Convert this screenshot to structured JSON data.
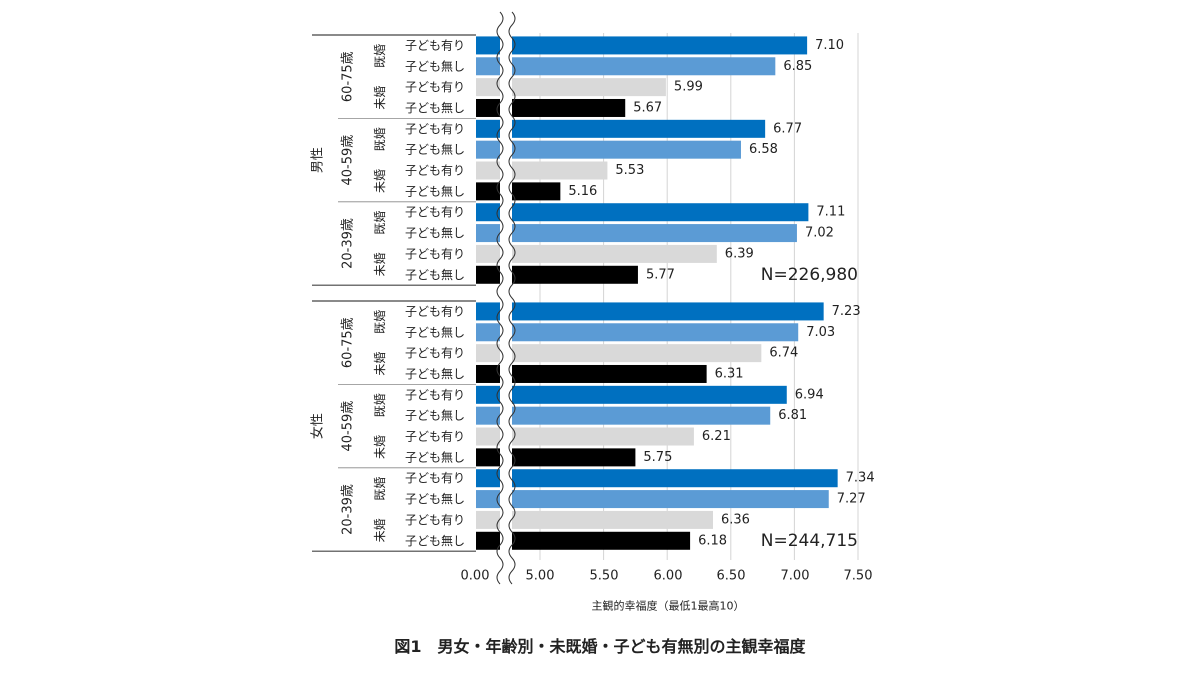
{
  "caption": "図1　男女・年齢別・未既婚・子ども有無別の主観幸福度",
  "chart_data": {
    "type": "bar",
    "orientation": "horizontal",
    "xlabel": "主観的幸福度（最低1最高10）",
    "x_ticks": [
      "0.00",
      "5.00",
      "5.50",
      "6.00",
      "6.50",
      "7.00",
      "7.50"
    ],
    "xlim": [
      4.5,
      7.5
    ],
    "axis_break": true,
    "grid": "vertical",
    "colors": {
      "married_child": "#0070c0",
      "married_nochild": "#5b9bd5",
      "single_child": "#d9d9d9",
      "single_nochild": "#000000"
    },
    "groups": [
      {
        "sex": "男性",
        "n_label": "N=226,980",
        "ages": [
          {
            "age": "60-75歳",
            "status": [
              {
                "label": "既婚",
                "bars": [
                  {
                    "label": "子ども有り",
                    "value": 7.1,
                    "value_label": "7.10",
                    "kind": "married_child"
                  },
                  {
                    "label": "子ども無し",
                    "value": 6.85,
                    "value_label": "6.85",
                    "kind": "married_nochild"
                  }
                ]
              },
              {
                "label": "未婚",
                "bars": [
                  {
                    "label": "子ども有り",
                    "value": 5.99,
                    "value_label": "5.99",
                    "kind": "single_child"
                  },
                  {
                    "label": "子ども無し",
                    "value": 5.67,
                    "value_label": "5.67",
                    "kind": "single_nochild"
                  }
                ]
              }
            ]
          },
          {
            "age": "40-59歳",
            "status": [
              {
                "label": "既婚",
                "bars": [
                  {
                    "label": "子ども有り",
                    "value": 6.77,
                    "value_label": "6.77",
                    "kind": "married_child"
                  },
                  {
                    "label": "子ども無し",
                    "value": 6.58,
                    "value_label": "6.58",
                    "kind": "married_nochild"
                  }
                ]
              },
              {
                "label": "未婚",
                "bars": [
                  {
                    "label": "子ども有り",
                    "value": 5.53,
                    "value_label": "5.53",
                    "kind": "single_child"
                  },
                  {
                    "label": "子ども無し",
                    "value": 5.16,
                    "value_label": "5.16",
                    "kind": "single_nochild"
                  }
                ]
              }
            ]
          },
          {
            "age": "20-39歳",
            "status": [
              {
                "label": "既婚",
                "bars": [
                  {
                    "label": "子ども有り",
                    "value": 7.11,
                    "value_label": "7.11",
                    "kind": "married_child"
                  },
                  {
                    "label": "子ども無し",
                    "value": 7.02,
                    "value_label": "7.02",
                    "kind": "married_nochild"
                  }
                ]
              },
              {
                "label": "未婚",
                "bars": [
                  {
                    "label": "子ども有り",
                    "value": 6.39,
                    "value_label": "6.39",
                    "kind": "single_child"
                  },
                  {
                    "label": "子ども無し",
                    "value": 5.77,
                    "value_label": "5.77",
                    "kind": "single_nochild"
                  }
                ]
              }
            ]
          }
        ]
      },
      {
        "sex": "女性",
        "n_label": "N=244,715",
        "ages": [
          {
            "age": "60-75歳",
            "status": [
              {
                "label": "既婚",
                "bars": [
                  {
                    "label": "子ども有り",
                    "value": 7.23,
                    "value_label": "7.23",
                    "kind": "married_child"
                  },
                  {
                    "label": "子ども無し",
                    "value": 7.03,
                    "value_label": "7.03",
                    "kind": "married_nochild"
                  }
                ]
              },
              {
                "label": "未婚",
                "bars": [
                  {
                    "label": "子ども有り",
                    "value": 6.74,
                    "value_label": "6.74",
                    "kind": "single_child"
                  },
                  {
                    "label": "子ども無し",
                    "value": 6.31,
                    "value_label": "6.31",
                    "kind": "single_nochild"
                  }
                ]
              }
            ]
          },
          {
            "age": "40-59歳",
            "status": [
              {
                "label": "既婚",
                "bars": [
                  {
                    "label": "子ども有り",
                    "value": 6.94,
                    "value_label": "6.94",
                    "kind": "married_child"
                  },
                  {
                    "label": "子ども無し",
                    "value": 6.81,
                    "value_label": "6.81",
                    "kind": "married_nochild"
                  }
                ]
              },
              {
                "label": "未婚",
                "bars": [
                  {
                    "label": "子ども有り",
                    "value": 6.21,
                    "value_label": "6.21",
                    "kind": "single_child"
                  },
                  {
                    "label": "子ども無し",
                    "value": 5.75,
                    "value_label": "5.75",
                    "kind": "single_nochild"
                  }
                ]
              }
            ]
          },
          {
            "age": "20-39歳",
            "status": [
              {
                "label": "既婚",
                "bars": [
                  {
                    "label": "子ども有り",
                    "value": 7.34,
                    "value_label": "7.34",
                    "kind": "married_child"
                  },
                  {
                    "label": "子ども無し",
                    "value": 7.27,
                    "value_label": "7.27",
                    "kind": "married_nochild"
                  }
                ]
              },
              {
                "label": "未婚",
                "bars": [
                  {
                    "label": "子ども有り",
                    "value": 6.36,
                    "value_label": "6.36",
                    "kind": "single_child"
                  },
                  {
                    "label": "子ども無し",
                    "value": 6.18,
                    "value_label": "6.18",
                    "kind": "single_nochild"
                  }
                ]
              }
            ]
          }
        ]
      }
    ]
  }
}
